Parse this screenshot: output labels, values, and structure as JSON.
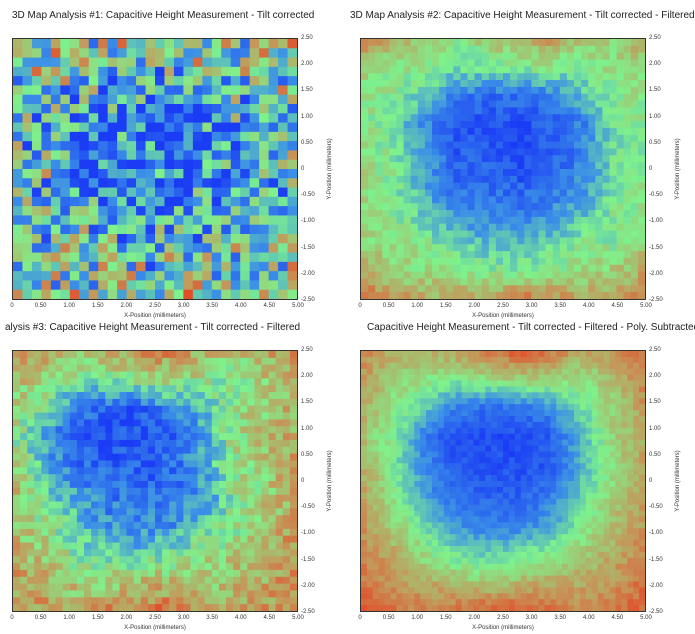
{
  "chart_data": [
    {
      "type": "heatmap",
      "title": "3D Map Analysis #1: Capacitive Height Measurement - Tilt corrected",
      "xlabel": "X-Position (millimeters)",
      "ylabel": "Y-Position (millimeters)",
      "xlim": [
        0,
        5
      ],
      "ylim": [
        -2.5,
        2.5
      ],
      "xticks": [
        "0",
        "0.50",
        "1.00",
        "1.50",
        "2.00",
        "2.50",
        "3.00",
        "3.50",
        "4.00",
        "4.50",
        "5.00"
      ],
      "yticks": [
        "2.50",
        "2.00",
        "1.50",
        "1.00",
        "0.50",
        "0",
        "-0.50",
        "-1.00",
        "-1.50",
        "-2.00",
        "-2.50"
      ],
      "colorscale": [
        "#1b3cf5",
        "#3a8ee8",
        "#7ef28c",
        "#c4985a",
        "#ea3a1c"
      ],
      "resolution": [
        30,
        28
      ],
      "noise": 0.35,
      "values": [
        [
          0.65,
          0.6,
          0.58,
          0.55,
          0.6,
          0.65,
          0.65,
          0.6,
          0.58,
          0.6
        ],
        [
          0.55,
          0.52,
          0.5,
          0.45,
          0.45,
          0.48,
          0.5,
          0.5,
          0.52,
          0.55
        ],
        [
          0.5,
          0.48,
          0.4,
          0.3,
          0.28,
          0.28,
          0.3,
          0.38,
          0.45,
          0.5
        ],
        [
          0.5,
          0.42,
          0.3,
          0.22,
          0.2,
          0.2,
          0.22,
          0.3,
          0.42,
          0.48
        ],
        [
          0.5,
          0.42,
          0.28,
          0.2,
          0.2,
          0.18,
          0.2,
          0.28,
          0.42,
          0.48
        ],
        [
          0.5,
          0.45,
          0.32,
          0.25,
          0.22,
          0.22,
          0.25,
          0.32,
          0.42,
          0.5
        ],
        [
          0.52,
          0.48,
          0.4,
          0.32,
          0.3,
          0.3,
          0.32,
          0.38,
          0.45,
          0.5
        ],
        [
          0.55,
          0.5,
          0.48,
          0.42,
          0.4,
          0.4,
          0.42,
          0.45,
          0.5,
          0.55
        ],
        [
          0.58,
          0.55,
          0.52,
          0.5,
          0.5,
          0.5,
          0.52,
          0.52,
          0.55,
          0.58
        ],
        [
          0.65,
          0.62,
          0.6,
          0.6,
          0.62,
          0.65,
          0.65,
          0.62,
          0.6,
          0.65
        ]
      ]
    },
    {
      "type": "heatmap",
      "title": "3D Map Analysis #2: Capacitive Height Measurement - Tilt corrected - Filtered",
      "xlabel": "X-Position (millimeters)",
      "ylabel": "Y-Position (millimeters)",
      "xlim": [
        0,
        5
      ],
      "ylim": [
        -2.5,
        2.5
      ],
      "xticks": [
        "0",
        "0.50",
        "1.00",
        "1.50",
        "2.00",
        "2.50",
        "3.00",
        "3.50",
        "4.00",
        "4.50",
        "5.00"
      ],
      "yticks": [
        "2.50",
        "2.00",
        "1.50",
        "1.00",
        "0.50",
        "0",
        "-0.50",
        "-1.00",
        "-1.50",
        "-2.00",
        "-2.50"
      ],
      "colorscale": [
        "#1b3cf5",
        "#3a8ee8",
        "#7ef28c",
        "#c4985a",
        "#ea3a1c"
      ],
      "resolution": [
        40,
        38
      ],
      "noise": 0.08,
      "values": [
        [
          0.8,
          0.7,
          0.6,
          0.55,
          0.6,
          0.7,
          0.75,
          0.65,
          0.6,
          0.7
        ],
        [
          0.6,
          0.55,
          0.5,
          0.45,
          0.45,
          0.5,
          0.5,
          0.5,
          0.55,
          0.6
        ],
        [
          0.55,
          0.5,
          0.4,
          0.2,
          0.15,
          0.15,
          0.2,
          0.35,
          0.5,
          0.55
        ],
        [
          0.55,
          0.45,
          0.25,
          0.1,
          0.05,
          0.05,
          0.1,
          0.2,
          0.45,
          0.5
        ],
        [
          0.55,
          0.5,
          0.3,
          0.1,
          0.1,
          0.05,
          0.1,
          0.2,
          0.45,
          0.5
        ],
        [
          0.6,
          0.5,
          0.3,
          0.15,
          0.15,
          0.1,
          0.15,
          0.25,
          0.45,
          0.55
        ],
        [
          0.6,
          0.5,
          0.4,
          0.25,
          0.2,
          0.2,
          0.25,
          0.35,
          0.5,
          0.55
        ],
        [
          0.6,
          0.55,
          0.5,
          0.4,
          0.35,
          0.35,
          0.4,
          0.5,
          0.5,
          0.6
        ],
        [
          0.7,
          0.6,
          0.55,
          0.55,
          0.5,
          0.5,
          0.55,
          0.55,
          0.6,
          0.7
        ],
        [
          0.85,
          0.75,
          0.7,
          0.7,
          0.75,
          0.8,
          0.8,
          0.7,
          0.7,
          0.8
        ]
      ]
    },
    {
      "type": "heatmap",
      "title": "alysis #3: Capacitive Height Measurement - Tilt corrected - Filtered",
      "xlabel": "X-Position (millimeters)",
      "ylabel": "Y-Position (millimeters)",
      "xlim": [
        0,
        5
      ],
      "ylim": [
        -2.5,
        2.5
      ],
      "xticks": [
        "0",
        "0.50",
        "1.00",
        "1.50",
        "2.00",
        "2.50",
        "3.00",
        "3.50",
        "4.00",
        "4.50",
        "5.00"
      ],
      "yticks": [
        "2.50",
        "2.00",
        "1.50",
        "1.00",
        "0.50",
        "0",
        "-0.50",
        "-1.00",
        "-1.50",
        "-2.00",
        "-2.50"
      ],
      "colorscale": [
        "#1b3cf5",
        "#3a8ee8",
        "#7ef28c",
        "#c4985a",
        "#ea3a1c"
      ],
      "resolution": [
        40,
        38
      ],
      "noise": 0.12,
      "values": [
        [
          0.75,
          0.7,
          0.65,
          0.7,
          0.75,
          0.8,
          0.7,
          0.6,
          0.7,
          0.8
        ],
        [
          0.65,
          0.6,
          0.5,
          0.5,
          0.55,
          0.6,
          0.55,
          0.5,
          0.6,
          0.7
        ],
        [
          0.6,
          0.45,
          0.2,
          0.1,
          0.1,
          0.2,
          0.35,
          0.55,
          0.6,
          0.7
        ],
        [
          0.55,
          0.3,
          0.05,
          0.05,
          0.05,
          0.1,
          0.3,
          0.55,
          0.65,
          0.7
        ],
        [
          0.6,
          0.35,
          0.15,
          0.1,
          0.1,
          0.15,
          0.3,
          0.55,
          0.6,
          0.75
        ],
        [
          0.7,
          0.45,
          0.3,
          0.2,
          0.15,
          0.15,
          0.25,
          0.5,
          0.6,
          0.7
        ],
        [
          0.65,
          0.55,
          0.4,
          0.25,
          0.2,
          0.25,
          0.4,
          0.5,
          0.65,
          0.75
        ],
        [
          0.7,
          0.6,
          0.5,
          0.4,
          0.4,
          0.45,
          0.55,
          0.6,
          0.7,
          0.8
        ],
        [
          0.75,
          0.7,
          0.6,
          0.6,
          0.65,
          0.65,
          0.6,
          0.65,
          0.7,
          0.8
        ],
        [
          0.7,
          0.75,
          0.7,
          0.8,
          0.85,
          0.85,
          0.75,
          0.7,
          0.75,
          0.8
        ]
      ]
    },
    {
      "type": "heatmap",
      "title": "Capacitive Height Measurement - Tilt corrected - Filtered - Poly. Subtracted - I",
      "xlabel": "X-Position (millimeters)",
      "ylabel": "Y-Position (millimeters)",
      "xlim": [
        0,
        5
      ],
      "ylim": [
        -2.5,
        2.5
      ],
      "xticks": [
        "0",
        "0.50",
        "1.00",
        "1.50",
        "2.00",
        "2.50",
        "3.00",
        "3.50",
        "4.00",
        "4.50",
        "5.00"
      ],
      "yticks": [
        "2.50",
        "2.00",
        "1.50",
        "1.00",
        "0.50",
        "0",
        "-0.50",
        "-1.00",
        "-1.50",
        "-2.00",
        "-2.50"
      ],
      "colorscale": [
        "#1b3cf5",
        "#3a8ee8",
        "#7ef28c",
        "#c4985a",
        "#ea3a1c"
      ],
      "resolution": [
        48,
        44
      ],
      "noise": 0.06,
      "values": [
        [
          0.8,
          0.7,
          0.65,
          0.75,
          0.85,
          0.9,
          0.85,
          0.7,
          0.75,
          0.85
        ],
        [
          0.75,
          0.6,
          0.55,
          0.5,
          0.55,
          0.6,
          0.6,
          0.55,
          0.65,
          0.8
        ],
        [
          0.7,
          0.55,
          0.4,
          0.2,
          0.15,
          0.15,
          0.25,
          0.45,
          0.6,
          0.75
        ],
        [
          0.65,
          0.5,
          0.2,
          0.05,
          0.05,
          0.05,
          0.1,
          0.35,
          0.6,
          0.7
        ],
        [
          0.7,
          0.5,
          0.25,
          0.1,
          0.08,
          0.05,
          0.1,
          0.35,
          0.55,
          0.75
        ],
        [
          0.75,
          0.55,
          0.3,
          0.15,
          0.12,
          0.1,
          0.2,
          0.4,
          0.6,
          0.75
        ],
        [
          0.75,
          0.6,
          0.45,
          0.25,
          0.2,
          0.2,
          0.3,
          0.5,
          0.65,
          0.75
        ],
        [
          0.8,
          0.7,
          0.55,
          0.45,
          0.4,
          0.45,
          0.5,
          0.6,
          0.7,
          0.8
        ],
        [
          0.85,
          0.75,
          0.7,
          0.65,
          0.6,
          0.65,
          0.7,
          0.7,
          0.75,
          0.85
        ],
        [
          0.9,
          0.85,
          0.8,
          0.85,
          0.9,
          0.9,
          0.85,
          0.8,
          0.85,
          0.9
        ]
      ]
    }
  ]
}
